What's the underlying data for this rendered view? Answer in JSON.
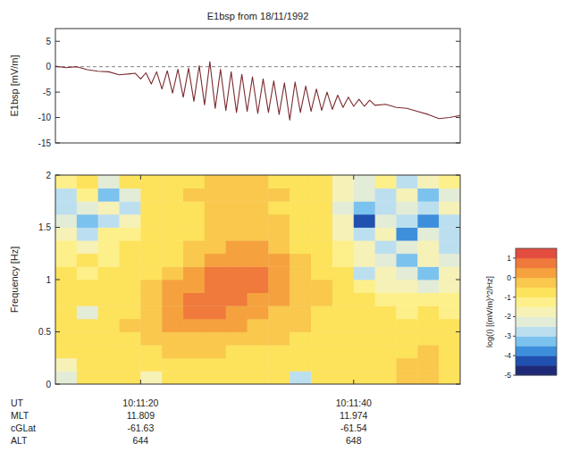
{
  "chart_data": [
    {
      "type": "line",
      "title": "E1bsp from 18/11/1992",
      "ylabel": "E1bsp [mV/m]",
      "x": [
        36672,
        36673,
        36674,
        36675,
        36676,
        36677,
        36678,
        36679,
        36679.5,
        36680,
        36680.5,
        36681,
        36681.5,
        36682,
        36682.5,
        36683,
        36683.5,
        36684,
        36684.5,
        36685,
        36685.5,
        36686,
        36686.5,
        36687,
        36687.5,
        36688,
        36688.5,
        36689,
        36689.5,
        36690,
        36690.5,
        36691,
        36691.5,
        36692,
        36692.5,
        36693,
        36693.5,
        36694,
        36694.5,
        36695,
        36695.5,
        36696,
        36696.5,
        36697,
        36697.5,
        36698,
        36698.5,
        36699,
        36699.5,
        36700,
        36700.5,
        36701,
        36701.5,
        36702,
        36703,
        36704,
        36705,
        36706,
        36707,
        36708,
        36709,
        36710
      ],
      "values": [
        0.1,
        -0.2,
        0.0,
        -0.6,
        -0.9,
        -1.0,
        -1.6,
        -1.4,
        -1.3,
        -2.4,
        -1.2,
        -3.4,
        -1.0,
        -4.4,
        -0.8,
        -5.2,
        -0.5,
        -6.0,
        -0.3,
        -6.8,
        0.2,
        -7.5,
        1.0,
        -8.2,
        -0.5,
        -8.6,
        -1.0,
        -9.0,
        -1.5,
        -8.8,
        -2.0,
        -9.2,
        -2.4,
        -9.0,
        -2.8,
        -9.4,
        -3.2,
        -10.5,
        -3.0,
        -9.0,
        -3.8,
        -8.8,
        -4.4,
        -8.6,
        -5.0,
        -8.4,
        -5.6,
        -8.0,
        -6.0,
        -7.8,
        -6.4,
        -7.8,
        -6.6,
        -7.6,
        -7.4,
        -8.0,
        -8.2,
        -8.8,
        -9.4,
        -10.2,
        -10.0,
        -9.6
      ],
      "color": "#7b2b2e",
      "line_style": "solid",
      "xlim": [
        36672,
        36710
      ],
      "ylim": [
        -15,
        7.5
      ],
      "yticks": [
        -15,
        -10,
        -5,
        0,
        5
      ],
      "tick_labels": "y"
    },
    {
      "type": "heatmap",
      "ylabel": "Frequency [Hz]",
      "xlabel": "UT",
      "x_edges": [
        36672,
        36674,
        36676,
        36678,
        36680,
        36682,
        36684,
        36686,
        36688,
        36690,
        36692,
        36694,
        36696,
        36698,
        36700,
        36702,
        36704,
        36706,
        36708,
        36710
      ],
      "y_edges": [
        0,
        0.125,
        0.25,
        0.375,
        0.5,
        0.625,
        0.75,
        0.875,
        1,
        1.125,
        1.25,
        1.375,
        1.5,
        1.625,
        1.75,
        1.875,
        2
      ],
      "cells": [
        [
          -2.2,
          -0.9,
          -0.8,
          -1.0,
          -2.0,
          -0.8,
          -0.7,
          -0.7,
          -0.8,
          -0.8,
          -0.9,
          -2.6,
          -0.8,
          -0.7,
          -0.7,
          -0.6,
          -0.5,
          -0.4,
          -0.6
        ],
        [
          -1.6,
          -1.0,
          -0.9,
          -0.8,
          -0.7,
          -0.7,
          -0.7,
          -0.7,
          -0.8,
          -0.8,
          -0.8,
          -0.8,
          -0.7,
          -0.8,
          -0.7,
          -0.6,
          -0.4,
          -0.5,
          -0.7
        ],
        [
          -0.8,
          -0.9,
          -0.8,
          -0.7,
          -0.6,
          -0.5,
          -0.5,
          -0.5,
          -0.6,
          -0.6,
          -0.7,
          -0.7,
          -0.8,
          -0.8,
          -0.8,
          -0.7,
          -0.6,
          -0.5,
          -0.8
        ],
        [
          -0.7,
          -0.8,
          -0.7,
          -0.6,
          -0.4,
          -0.3,
          -0.2,
          -0.2,
          -0.3,
          -0.4,
          -0.5,
          -0.6,
          -0.7,
          -0.8,
          -0.8,
          -0.7,
          -0.9,
          -0.8,
          -0.9
        ],
        [
          -0.8,
          -0.8,
          -0.7,
          -0.5,
          -0.3,
          0.0,
          0.2,
          0.2,
          0.0,
          -0.2,
          -0.3,
          -0.5,
          -0.6,
          -0.8,
          -0.9,
          -0.9,
          -1.0,
          -0.9,
          -1.0
        ],
        [
          -0.8,
          -2.4,
          -0.8,
          -0.6,
          -0.1,
          0.2,
          0.5,
          0.6,
          0.4,
          0.1,
          -0.1,
          -0.3,
          -0.6,
          -0.8,
          -0.9,
          -1.0,
          -1.1,
          -1.0,
          -1.2
        ],
        [
          -0.9,
          -0.9,
          -0.8,
          -0.6,
          -0.2,
          0.3,
          0.6,
          0.9,
          0.7,
          0.4,
          0.1,
          -0.2,
          -0.5,
          -0.8,
          -1.0,
          -1.2,
          -1.4,
          -1.2,
          -1.4
        ],
        [
          -0.9,
          -1.0,
          -0.8,
          -0.6,
          -0.4,
          0.0,
          0.4,
          0.8,
          0.9,
          0.6,
          0.2,
          -0.1,
          -0.5,
          -0.9,
          -1.4,
          -1.8,
          -1.6,
          -2.2,
          -1.6
        ],
        [
          -1.0,
          -1.2,
          -0.9,
          -0.8,
          -0.6,
          -0.3,
          0.1,
          0.5,
          0.7,
          0.6,
          0.2,
          -0.2,
          -0.6,
          -1.0,
          -2.8,
          -1.6,
          -2.4,
          -3.4,
          -1.8
        ],
        [
          -1.2,
          -1.0,
          -1.1,
          -0.9,
          -0.8,
          -0.6,
          -0.3,
          0.0,
          0.3,
          0.4,
          0.0,
          -0.4,
          -0.7,
          -1.2,
          -1.8,
          -2.2,
          -3.2,
          -2.0,
          -2.4
        ],
        [
          -1.4,
          -1.6,
          -1.2,
          -1.0,
          -0.9,
          -0.7,
          -0.5,
          -0.2,
          0.0,
          0.1,
          -0.2,
          -0.6,
          -0.8,
          -1.4,
          -2.0,
          -2.8,
          -2.2,
          -1.8,
          -2.6
        ],
        [
          -1.8,
          -2.6,
          -1.4,
          -1.2,
          -1.0,
          -0.8,
          -0.6,
          -0.4,
          -0.2,
          -0.1,
          -0.4,
          -0.7,
          -0.9,
          -1.6,
          -2.6,
          -1.8,
          -3.6,
          -2.4,
          -3.0
        ],
        [
          -2.4,
          -3.4,
          -2.8,
          -1.6,
          -1.0,
          -0.8,
          -0.7,
          -0.4,
          -0.3,
          -0.2,
          -0.5,
          -0.8,
          -1.0,
          -2.0,
          -4.2,
          -2.4,
          -3.0,
          -3.6,
          -2.6
        ],
        [
          -3.0,
          -2.2,
          -2.0,
          -2.6,
          -1.0,
          -0.8,
          -0.6,
          -0.3,
          -0.2,
          -0.4,
          -0.6,
          -0.8,
          -0.9,
          -2.4,
          -3.2,
          -2.8,
          -2.2,
          -2.6,
          -2.0
        ],
        [
          -2.6,
          -1.5,
          -3.2,
          -2.4,
          -0.9,
          -0.8,
          -0.5,
          -0.2,
          -0.1,
          -0.3,
          -0.5,
          -0.8,
          -1.0,
          -1.6,
          -2.5,
          -3.0,
          -2.0,
          -3.2,
          -2.2
        ],
        [
          -1.2,
          -1.0,
          -2.2,
          -1.0,
          -0.8,
          -0.8,
          -0.8,
          -0.4,
          -0.3,
          -0.4,
          -0.6,
          -0.8,
          -0.9,
          -1.8,
          -2.2,
          -1.5,
          -2.6,
          -1.6,
          -1.2
        ]
      ],
      "xlim": [
        36672,
        36710
      ],
      "ylim": [
        0,
        2
      ],
      "xticks": [
        {
          "value": 36680,
          "label": "10:11:20"
        },
        {
          "value": 36700,
          "label": "10:11:40"
        }
      ],
      "yticks": [
        0,
        0.5,
        1,
        1.5,
        2
      ],
      "colorbar_range": [
        -5,
        1.5
      ],
      "colorbar_ticks": [
        -5,
        -4,
        -3,
        -2,
        -1,
        0,
        1
      ],
      "colorbar_label": "log(I) [(mV/m)^2/Hz]",
      "ephemeris": [
        {
          "name": "MLT",
          "values": [
            11.809,
            11.974
          ]
        },
        {
          "name": "cGLat",
          "values": [
            -61.63,
            -61.54
          ]
        },
        {
          "name": "ALT",
          "values": [
            644,
            648
          ]
        }
      ]
    }
  ]
}
